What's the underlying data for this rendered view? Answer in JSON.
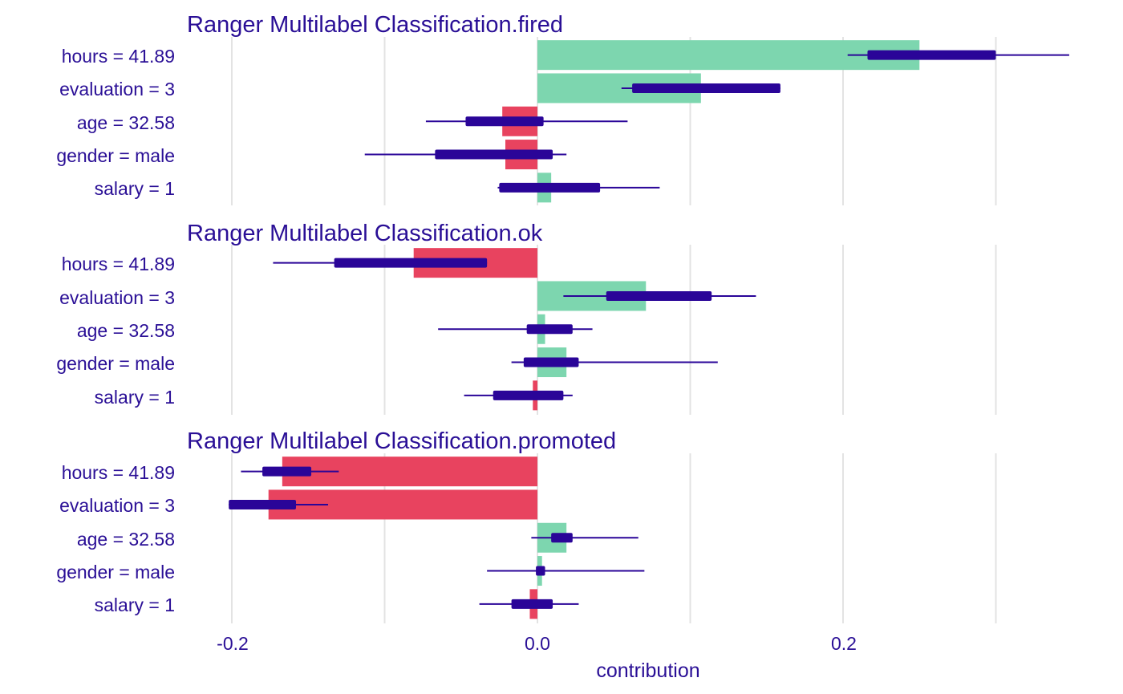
{
  "chart_data": {
    "type": "bar",
    "title": "",
    "xlabel": "contribution",
    "ylabel": "",
    "xlim": [
      -0.2,
      0.35
    ],
    "x_ticks": [
      -0.2,
      0.0,
      0.2
    ],
    "x_tick_labels": [
      "-0.2",
      "0.0",
      "0.2"
    ],
    "grid_values": [
      -0.2,
      -0.1,
      0.0,
      0.1,
      0.2,
      0.3
    ],
    "colors": {
      "positive": "#7dd6af",
      "negative": "#e8435f",
      "boxplot": "#2a0598",
      "grid": "#e3e3e3",
      "text": "#2a0f96"
    },
    "categories": [
      "hours = 41.89",
      "evaluation = 3",
      "age = 32.58",
      "gender = male",
      "salary = 1"
    ],
    "panels": [
      {
        "title": "Ranger Multilabel Classification.fired",
        "rows": [
          {
            "label": "hours = 41.89",
            "value": 0.25,
            "whisker": [
              0.203,
              0.348
            ],
            "box": [
              0.216,
              0.3
            ]
          },
          {
            "label": "evaluation = 3",
            "value": 0.107,
            "whisker": [
              0.055,
              0.159
            ],
            "box": [
              0.062,
              0.159
            ]
          },
          {
            "label": "age = 32.58",
            "value": -0.023,
            "whisker": [
              -0.073,
              0.059
            ],
            "box": [
              -0.047,
              0.004
            ]
          },
          {
            "label": "gender = male",
            "value": -0.021,
            "whisker": [
              -0.113,
              0.019
            ],
            "box": [
              -0.067,
              0.01
            ]
          },
          {
            "label": "salary = 1",
            "value": 0.009,
            "whisker": [
              -0.026,
              0.08
            ],
            "box": [
              -0.025,
              0.041
            ]
          }
        ]
      },
      {
        "title": "Ranger Multilabel Classification.ok",
        "rows": [
          {
            "label": "hours = 41.89",
            "value": -0.081,
            "whisker": [
              -0.173,
              -0.033
            ],
            "box": [
              -0.133,
              -0.033
            ]
          },
          {
            "label": "evaluation = 3",
            "value": 0.071,
            "whisker": [
              0.017,
              0.143
            ],
            "box": [
              0.045,
              0.114
            ]
          },
          {
            "label": "age = 32.58",
            "value": 0.005,
            "whisker": [
              -0.065,
              0.036
            ],
            "box": [
              -0.007,
              0.023
            ]
          },
          {
            "label": "gender = male",
            "value": 0.019,
            "whisker": [
              -0.017,
              0.118
            ],
            "box": [
              -0.009,
              0.027
            ]
          },
          {
            "label": "salary = 1",
            "value": -0.003,
            "whisker": [
              -0.048,
              0.023
            ],
            "box": [
              -0.029,
              0.017
            ]
          }
        ]
      },
      {
        "title": "Ranger Multilabel Classification.promoted",
        "rows": [
          {
            "label": "hours = 41.89",
            "value": -0.167,
            "whisker": [
              -0.194,
              -0.13
            ],
            "box": [
              -0.18,
              -0.148
            ]
          },
          {
            "label": "evaluation = 3",
            "value": -0.176,
            "whisker": [
              -0.202,
              -0.137
            ],
            "box": [
              -0.202,
              -0.158
            ]
          },
          {
            "label": "age = 32.58",
            "value": 0.019,
            "whisker": [
              -0.004,
              0.066
            ],
            "box": [
              0.009,
              0.023
            ]
          },
          {
            "label": "gender = male",
            "value": 0.003,
            "whisker": [
              -0.033,
              0.07
            ],
            "box": [
              -0.001,
              0.005
            ]
          },
          {
            "label": "salary = 1",
            "value": -0.005,
            "whisker": [
              -0.038,
              0.027
            ],
            "box": [
              -0.017,
              0.01
            ]
          }
        ]
      }
    ]
  }
}
